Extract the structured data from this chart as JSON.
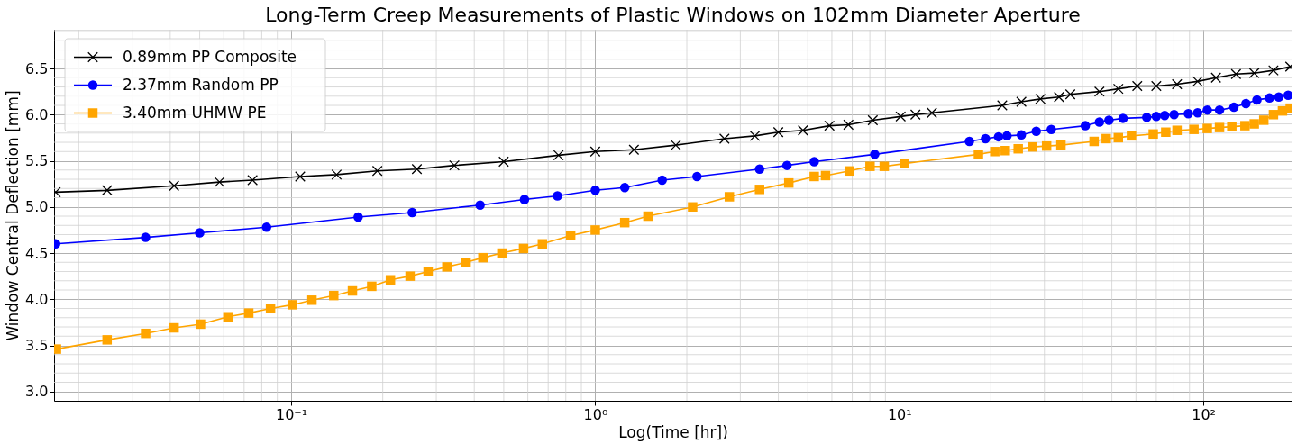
{
  "chart_data": {
    "type": "line",
    "title": "Long-Term Creep Measurements of Plastic Windows on 102mm Diameter Aperture",
    "xlabel": "Log(Time [hr])",
    "ylabel": "Window Central Deflection [mm]",
    "log": "x",
    "xlim": [
      0.0166,
      195
    ],
    "ylim": [
      2.9,
      6.92
    ],
    "xticks": [
      {
        "value": 0.1,
        "label": "10⁻¹"
      },
      {
        "value": 1,
        "label": "10⁰"
      },
      {
        "value": 10,
        "label": "10¹"
      },
      {
        "value": 100,
        "label": "10²"
      }
    ],
    "yticks": [
      {
        "value": 3,
        "label": "3.0"
      },
      {
        "value": 3.5,
        "label": "3.5"
      },
      {
        "value": 4,
        "label": "4.0"
      },
      {
        "value": 4.5,
        "label": "4.5"
      },
      {
        "value": 5,
        "label": "5.0"
      },
      {
        "value": 5.5,
        "label": "5.5"
      },
      {
        "value": 6,
        "label": "6.0"
      },
      {
        "value": 6.5,
        "label": "6.5"
      }
    ],
    "grid": true,
    "legend": "top left",
    "line_style": "solid",
    "series": [
      {
        "name": "0.89mm PP Composite",
        "color": "#000000",
        "marker": "cross",
        "x": [
          0.0168,
          0.0248,
          0.0412,
          0.0581,
          0.0746,
          0.107,
          0.141,
          0.192,
          0.259,
          0.344,
          0.5,
          0.757,
          1.0,
          1.34,
          1.84,
          2.66,
          3.35,
          4.0,
          4.82,
          5.89,
          6.8,
          8.18,
          10.1,
          11.3,
          12.8,
          21.8,
          25.2,
          29.1,
          33.5,
          36.5,
          45.5,
          52.5,
          60.6,
          70,
          81.9,
          95.7,
          110,
          128,
          147,
          170,
          193
        ],
        "values": [
          5.16,
          5.18,
          5.23,
          5.27,
          5.29,
          5.33,
          5.35,
          5.39,
          5.41,
          5.45,
          5.49,
          5.56,
          5.6,
          5.62,
          5.67,
          5.74,
          5.77,
          5.81,
          5.83,
          5.88,
          5.89,
          5.94,
          5.98,
          6.0,
          6.02,
          6.1,
          6.14,
          6.17,
          6.19,
          6.22,
          6.25,
          6.28,
          6.31,
          6.31,
          6.33,
          6.36,
          6.4,
          6.44,
          6.45,
          6.48,
          6.52
        ]
      },
      {
        "name": "2.37mm Random PP",
        "color": "#0000ff",
        "marker": "circle",
        "x": [
          0.0168,
          0.0332,
          0.05,
          0.083,
          0.166,
          0.25,
          0.418,
          0.585,
          0.751,
          1.0,
          1.25,
          1.66,
          2.16,
          3.47,
          4.27,
          5.25,
          8.3,
          17.0,
          19.2,
          21.2,
          22.6,
          25.2,
          28.2,
          31.6,
          40.9,
          45.5,
          48.9,
          54.4,
          65.1,
          70.0,
          74.6,
          80.1,
          89.2,
          95.7,
          103,
          113,
          126,
          138,
          150,
          165,
          177,
          190
        ],
        "values": [
          4.6,
          4.67,
          4.72,
          4.78,
          4.89,
          4.94,
          5.02,
          5.08,
          5.12,
          5.18,
          5.21,
          5.29,
          5.33,
          5.41,
          5.45,
          5.49,
          5.57,
          5.71,
          5.74,
          5.76,
          5.77,
          5.78,
          5.82,
          5.84,
          5.88,
          5.92,
          5.94,
          5.96,
          5.97,
          5.98,
          5.99,
          6.0,
          6.01,
          6.02,
          6.05,
          6.05,
          6.08,
          6.12,
          6.16,
          6.18,
          6.19,
          6.21
        ]
      },
      {
        "name": "3.40mm UHMW PE",
        "color": "#ffa500",
        "marker": "square",
        "x": [
          0.0169,
          0.0248,
          0.0332,
          0.0412,
          0.0503,
          0.0619,
          0.0725,
          0.0855,
          0.101,
          0.117,
          0.138,
          0.159,
          0.184,
          0.212,
          0.246,
          0.282,
          0.325,
          0.376,
          0.427,
          0.493,
          0.581,
          0.67,
          0.83,
          1.0,
          1.25,
          1.49,
          2.09,
          2.76,
          3.47,
          4.33,
          5.25,
          5.72,
          6.85,
          8.01,
          8.92,
          10.4,
          18.2,
          20.6,
          22.3,
          24.6,
          27.4,
          30.5,
          34.0,
          43.7,
          47.9,
          52.5,
          58.0,
          68.4,
          75.2,
          81.9,
          93.1,
          103,
          113,
          124,
          137,
          147,
          158,
          170,
          182,
          193
        ],
        "values": [
          3.46,
          3.56,
          3.63,
          3.69,
          3.73,
          3.81,
          3.85,
          3.9,
          3.94,
          3.99,
          4.04,
          4.09,
          4.14,
          4.21,
          4.25,
          4.3,
          4.35,
          4.4,
          4.45,
          4.5,
          4.55,
          4.6,
          4.69,
          4.75,
          4.83,
          4.9,
          5.0,
          5.11,
          5.19,
          5.26,
          5.33,
          5.34,
          5.39,
          5.44,
          5.44,
          5.47,
          5.57,
          5.6,
          5.61,
          5.63,
          5.65,
          5.66,
          5.67,
          5.71,
          5.74,
          5.75,
          5.77,
          5.79,
          5.81,
          5.83,
          5.84,
          5.85,
          5.86,
          5.87,
          5.88,
          5.9,
          5.94,
          6.0,
          6.04,
          6.07
        ]
      }
    ]
  }
}
